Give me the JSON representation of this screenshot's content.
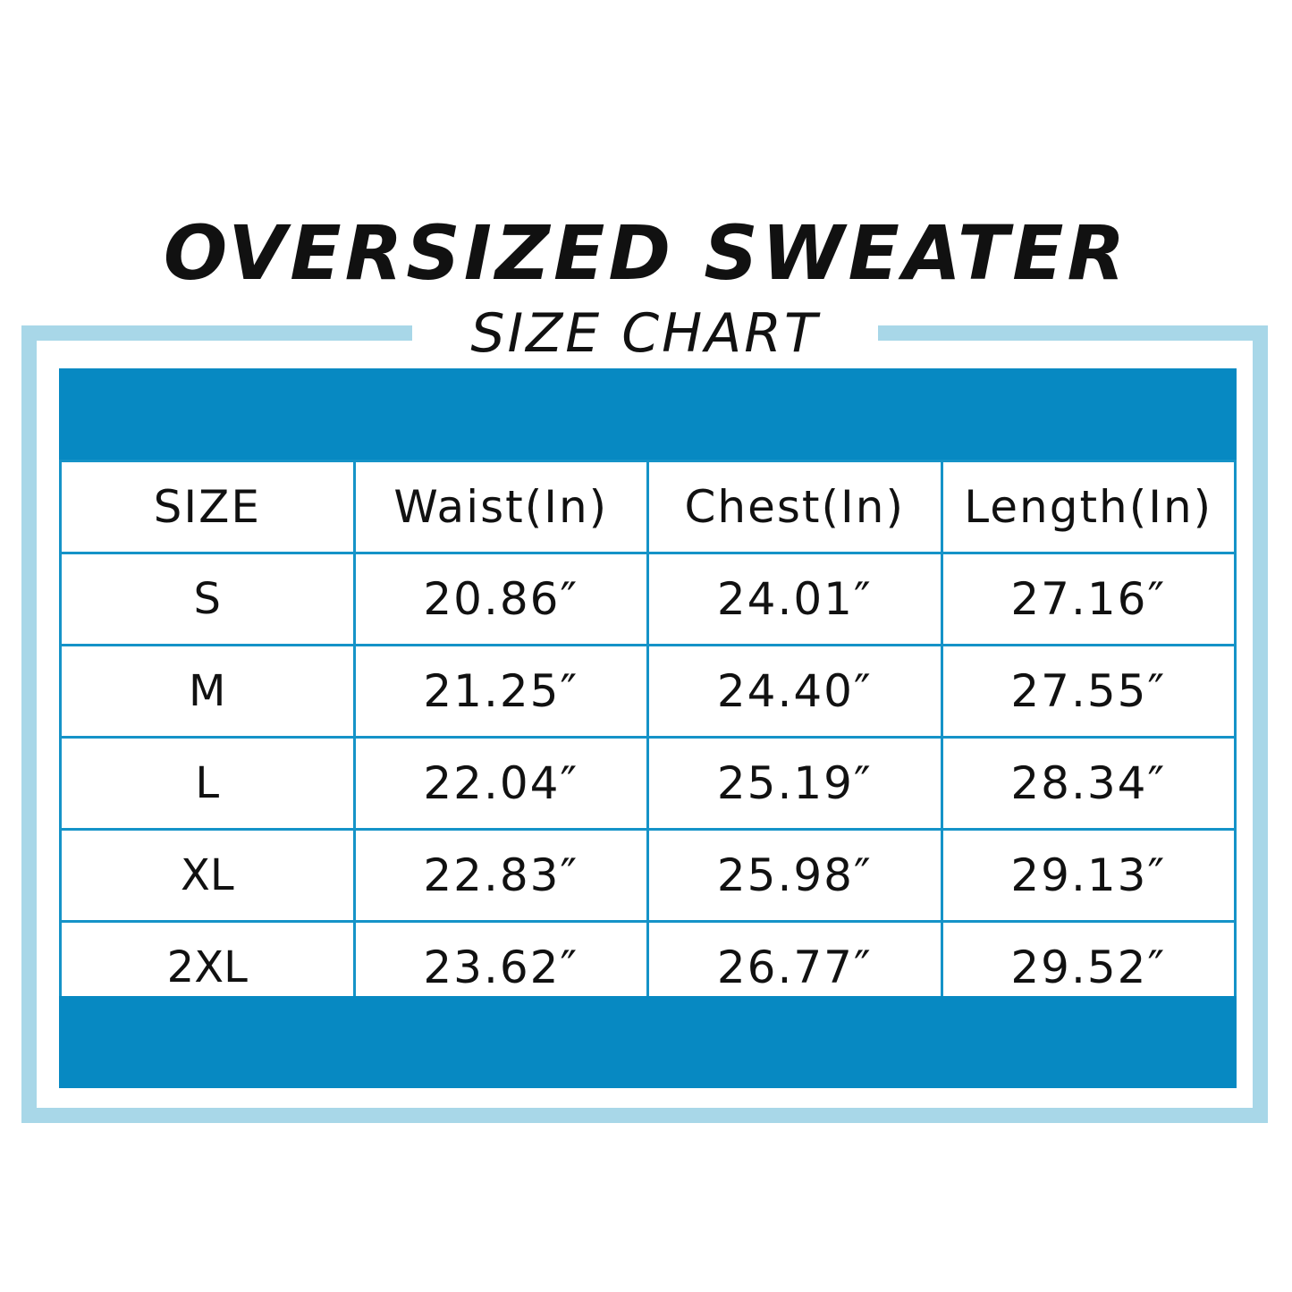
{
  "title": "OVERSIZED SWEATER",
  "subtitle": "SIZE CHART",
  "colors": {
    "frame": "#a8d7e8",
    "band": "#0789c2",
    "grid": "#1593c8",
    "text": "#111111"
  },
  "table": {
    "headers": [
      "SIZE",
      "Waist(In)",
      "Chest(In)",
      "Length(In)"
    ],
    "rows": [
      {
        "size": "S",
        "waist": "20.86″",
        "chest": "24.01″",
        "length": "27.16″"
      },
      {
        "size": "M",
        "waist": "21.25″",
        "chest": "24.40″",
        "length": "27.55″"
      },
      {
        "size": "L",
        "waist": "22.04″",
        "chest": "25.19″",
        "length": "28.34″"
      },
      {
        "size": "XL",
        "waist": "22.83″",
        "chest": "25.98″",
        "length": "29.13″"
      },
      {
        "size": "2XL",
        "waist": "23.62″",
        "chest": "26.77″",
        "length": "29.52″"
      }
    ]
  }
}
